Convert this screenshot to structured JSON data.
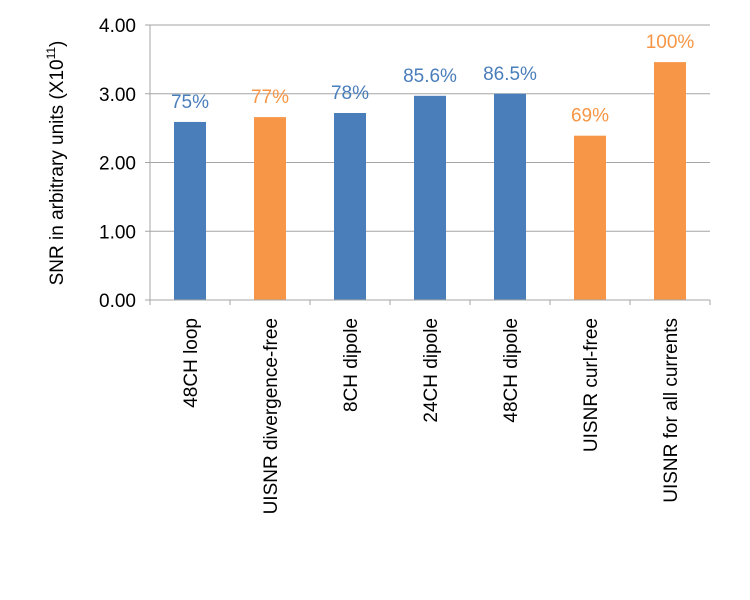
{
  "chart_data": {
    "type": "bar",
    "title": "",
    "xlabel": "",
    "ylabel": {
      "before": "SNR in arbitrary units (X10",
      "superscript": "11",
      "after": ")"
    },
    "ylim": [
      0,
      4
    ],
    "yticks": [
      "0.00",
      "1.00",
      "2.00",
      "3.00",
      "4.00"
    ],
    "grid": true,
    "legend": "none",
    "categories": [
      "48CH loop",
      "UISNR divergence-free",
      "8CH dipole",
      "24CH dipole",
      "48CH dipole",
      "UISNR curl-free",
      "UISNR for all currents"
    ],
    "values": [
      2.59,
      2.66,
      2.72,
      2.97,
      3.0,
      2.39,
      3.46
    ],
    "labels": [
      "75%",
      "77%",
      "78%",
      "85.6%",
      "86.5%",
      "69%",
      "100%"
    ],
    "bar_colors": [
      "#4a7ebb",
      "#f79646",
      "#4a7ebb",
      "#4a7ebb",
      "#4a7ebb",
      "#f79646",
      "#f79646"
    ],
    "label_colors": [
      "#4a7ebb",
      "#f79646",
      "#4a7ebb",
      "#4a7ebb",
      "#4a7ebb",
      "#f79646",
      "#f79646"
    ],
    "gridline_color": "#a6a6a6"
  }
}
